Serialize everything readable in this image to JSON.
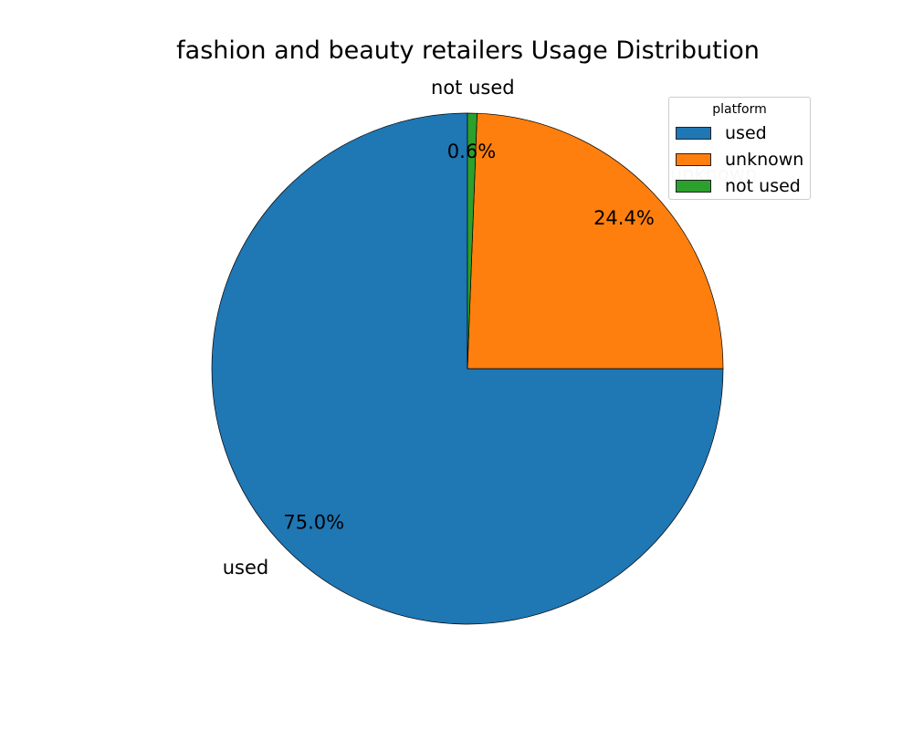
{
  "chart_data": {
    "type": "pie",
    "title": "fashion and beauty retailers Usage Distribution",
    "slices": [
      {
        "label": "used",
        "value": 75.0,
        "pct_label": "75.0%",
        "color": "#1f77b4"
      },
      {
        "label": "unknown",
        "value": 24.4,
        "pct_label": "24.4%",
        "color": "#ff7f0e"
      },
      {
        "label": "not used",
        "value": 0.6,
        "pct_label": "0.6%",
        "color": "#2ca02c"
      }
    ],
    "legend": {
      "title": "platform",
      "placement": "top-right",
      "items": [
        "used",
        "unknown",
        "not used"
      ]
    }
  }
}
